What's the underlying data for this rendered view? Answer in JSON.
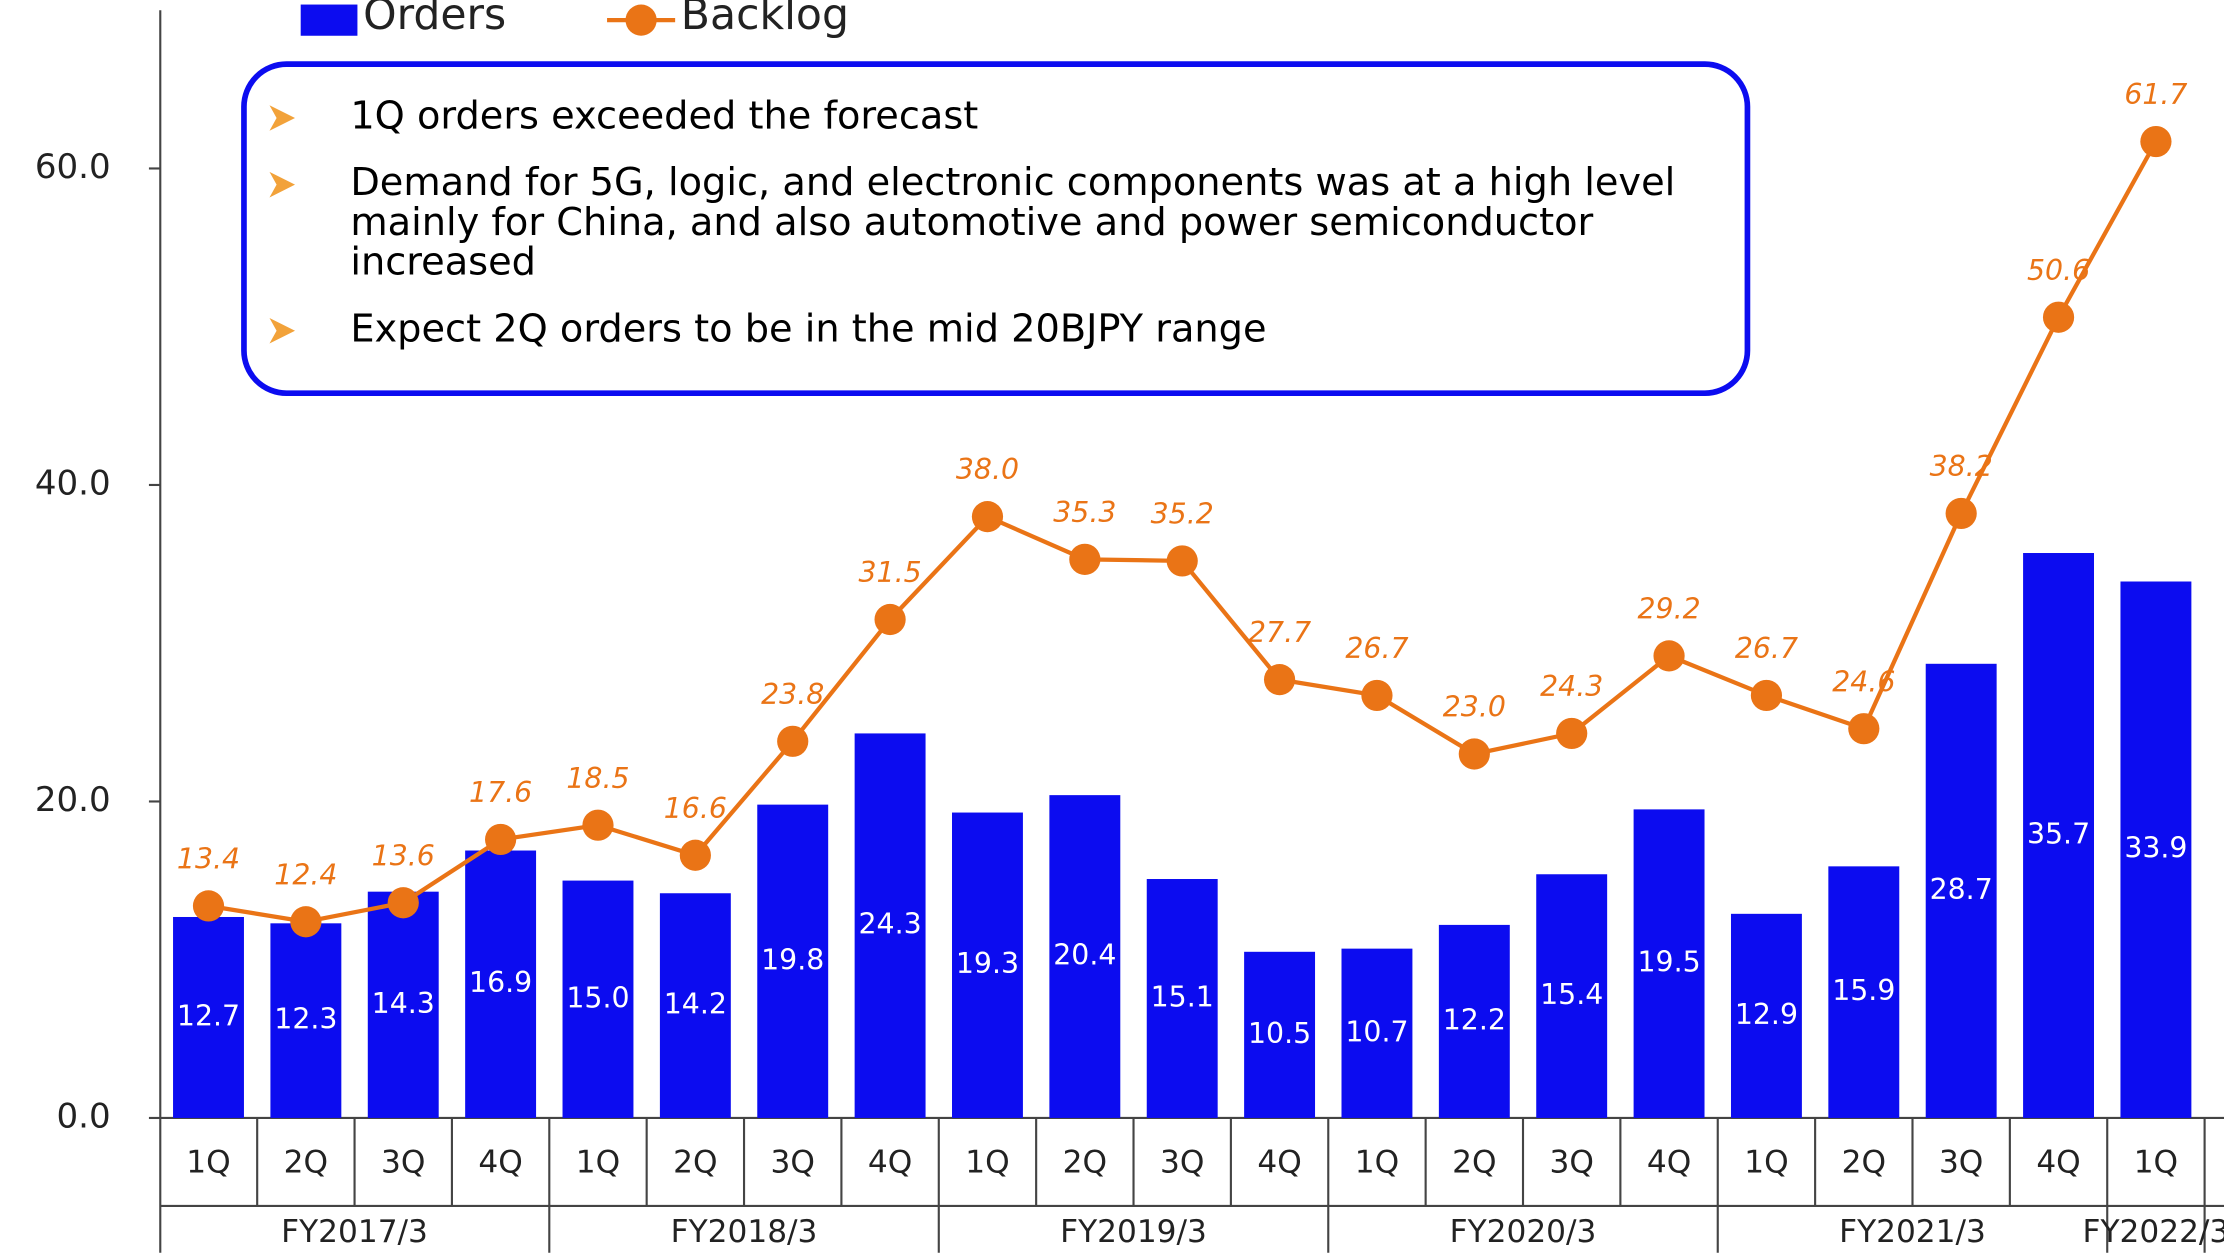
{
  "chart_data": {
    "type": "bar",
    "groups": [
      {
        "label": "FY2017/3",
        "categories": [
          "1Q",
          "2Q",
          "3Q",
          "4Q"
        ]
      },
      {
        "label": "FY2018/3",
        "categories": [
          "1Q",
          "2Q",
          "3Q",
          "4Q"
        ]
      },
      {
        "label": "FY2019/3",
        "categories": [
          "1Q",
          "2Q",
          "3Q",
          "4Q"
        ]
      },
      {
        "label": "FY2020/3",
        "categories": [
          "1Q",
          "2Q",
          "3Q",
          "4Q"
        ]
      },
      {
        "label": "FY2021/3",
        "categories": [
          "1Q",
          "2Q",
          "3Q",
          "4Q"
        ]
      },
      {
        "label": "FY2022/3",
        "categories": [
          "1Q"
        ]
      }
    ],
    "series": [
      {
        "name": "Orders",
        "type": "bar",
        "color": "#0c0cf0",
        "values": [
          12.7,
          12.3,
          14.3,
          16.9,
          15.0,
          14.2,
          19.8,
          24.3,
          19.3,
          20.4,
          15.1,
          10.5,
          10.7,
          12.2,
          15.4,
          19.5,
          12.9,
          15.9,
          28.7,
          35.7,
          33.9
        ],
        "value_labels": [
          "12.7",
          "12.3",
          "14.3",
          "16.9",
          "15.0",
          "14.2",
          "19.8",
          "24.3",
          "19.3",
          "20.4",
          "15.1",
          "10.5",
          "10.7",
          "12.2",
          "15.4",
          "19.5",
          "12.9",
          "15.9",
          "28.7",
          "35.7",
          "33.9"
        ]
      },
      {
        "name": "Backlog",
        "type": "line",
        "color": "#ea7416",
        "values": [
          13.4,
          12.4,
          13.6,
          17.6,
          18.5,
          16.6,
          23.8,
          31.5,
          38.0,
          35.3,
          35.2,
          27.7,
          26.7,
          23.0,
          24.3,
          29.2,
          26.7,
          24.6,
          38.2,
          50.6,
          61.7
        ],
        "value_labels": [
          "13.4",
          "12.4",
          "13.6",
          "17.6",
          "18.5",
          "16.6",
          "23.8",
          "31.5",
          "38.0",
          "35.3",
          "35.2",
          "27.7",
          "26.7",
          "23.0",
          "24.3",
          "29.2",
          "26.7",
          "24.6",
          "38.2",
          "50.6",
          "61.7"
        ]
      }
    ],
    "ylim": [
      0,
      70
    ],
    "yticks": [
      {
        "value": 0,
        "label": "0.0"
      },
      {
        "value": 20,
        "label": "20.0"
      },
      {
        "value": 40,
        "label": "40.0"
      },
      {
        "value": 60,
        "label": "60.0"
      }
    ],
    "legend": "top",
    "annotation": [
      [
        "1Q orders exceeded the forecast"
      ],
      [
        "Demand for 5G, logic, and electronic components was at a high level",
        "mainly for China, and also automotive and power semiconductor",
        "increased"
      ],
      [
        "Expect 2Q orders to be in the mid 20BJPY range"
      ]
    ]
  }
}
